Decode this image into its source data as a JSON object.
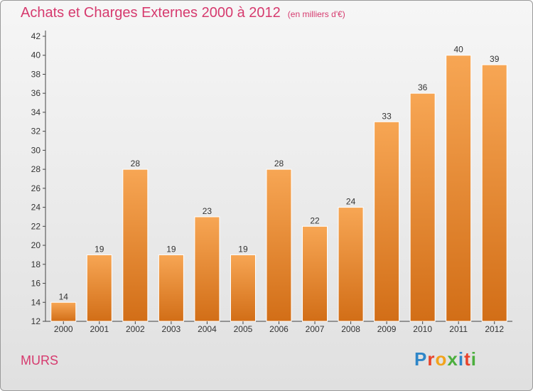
{
  "title": "Achats et Charges Externes 2000 à 2012",
  "subtitle": "(en milliers d'€)",
  "commune": "MURS",
  "logo": {
    "text": "Proxiti",
    "letter_colors": [
      "#2e86c8",
      "#e8432b",
      "#f2a31c",
      "#4caf3e",
      "#2e86c8",
      "#e8432b",
      "#4caf3e"
    ]
  },
  "colors": {
    "accent": "#d63a6e",
    "bar_top": "#f7a654",
    "bar_bottom": "#d26e17",
    "bar_edge": "#ffffff",
    "axis": "#444444"
  },
  "chart_data": {
    "type": "bar",
    "categories": [
      "2000",
      "2001",
      "2002",
      "2003",
      "2004",
      "2005",
      "2006",
      "2007",
      "2008",
      "2009",
      "2010",
      "2011",
      "2012"
    ],
    "values": [
      14,
      19,
      28,
      19,
      23,
      19,
      28,
      22,
      24,
      33,
      36,
      40,
      39
    ],
    "ylim": [
      12,
      42
    ],
    "yticks": [
      12,
      14,
      16,
      18,
      20,
      22,
      24,
      26,
      28,
      30,
      32,
      34,
      36,
      38,
      40,
      42
    ],
    "grid": false,
    "data_labels": true
  }
}
